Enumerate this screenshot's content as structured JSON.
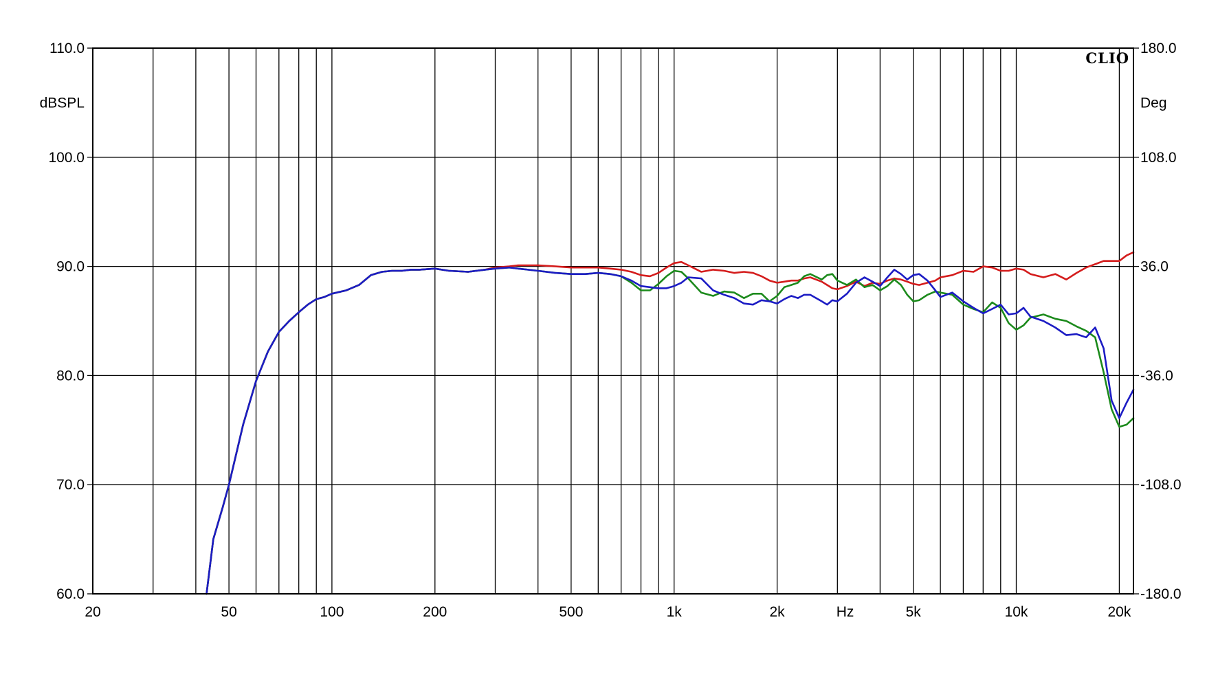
{
  "chart_data": {
    "type": "line",
    "brand": "CLIO",
    "x_scale": "log",
    "xlim": [
      20,
      22000
    ],
    "ylim": [
      60,
      110
    ],
    "y2lim": [
      -180,
      180
    ],
    "ylabel": "dBSPL",
    "y2label": "Deg",
    "xunit": "Hz",
    "grid": true,
    "x_ticks": [
      {
        "value": 20,
        "label": "20"
      },
      {
        "value": 50,
        "label": "50"
      },
      {
        "value": 100,
        "label": "100"
      },
      {
        "value": 200,
        "label": "200"
      },
      {
        "value": 500,
        "label": "500"
      },
      {
        "value": 1000,
        "label": "1k"
      },
      {
        "value": 2000,
        "label": "2k"
      },
      {
        "value": 5000,
        "label": "5k"
      },
      {
        "value": 10000,
        "label": "10k"
      },
      {
        "value": 20000,
        "label": "20k"
      }
    ],
    "x_grid": [
      20,
      30,
      40,
      50,
      60,
      70,
      80,
      90,
      100,
      200,
      300,
      400,
      500,
      600,
      700,
      800,
      900,
      1000,
      2000,
      3000,
      4000,
      5000,
      6000,
      7000,
      8000,
      9000,
      10000,
      20000
    ],
    "y_ticks": [
      {
        "value": 110,
        "label": "110.0"
      },
      {
        "value": 100,
        "label": "100.0"
      },
      {
        "value": 90,
        "label": "90.0"
      },
      {
        "value": 80,
        "label": "80.0"
      },
      {
        "value": 70,
        "label": "70.0"
      },
      {
        "value": 60,
        "label": "60.0"
      }
    ],
    "y2_ticks": [
      {
        "value": 180,
        "label": "180.0"
      },
      {
        "value": 108,
        "label": "108.0"
      },
      {
        "value": 36,
        "label": "36.0"
      },
      {
        "value": -36,
        "label": "-36.0"
      },
      {
        "value": -108,
        "label": "-108.0"
      },
      {
        "value": -180,
        "label": "-180.0"
      }
    ],
    "colors": {
      "red": "#d41c1c",
      "green": "#1c8a1c",
      "blue": "#1c1cc4"
    },
    "series": [
      {
        "color": "red",
        "x": [
          43,
          45,
          48,
          50,
          55,
          60,
          65,
          70,
          75,
          80,
          85,
          90,
          95,
          100,
          110,
          120,
          130,
          140,
          150,
          160,
          170,
          180,
          200,
          220,
          250,
          280,
          300,
          330,
          350,
          400,
          450,
          500,
          550,
          600,
          650,
          700,
          750,
          800,
          850,
          900,
          950,
          1000,
          1050,
          1100,
          1200,
          1300,
          1400,
          1500,
          1600,
          1700,
          1800,
          1900,
          2000,
          2100,
          2200,
          2300,
          2400,
          2500,
          2700,
          2800,
          2900,
          3000,
          3200,
          3400,
          3600,
          3800,
          4000,
          4200,
          4400,
          4600,
          4800,
          5000,
          5200,
          5500,
          5800,
          6000,
          6500,
          7000,
          7500,
          8000,
          8500,
          9000,
          9500,
          10000,
          10500,
          11000,
          12000,
          13000,
          14000,
          15000,
          16000,
          17000,
          18000,
          19000,
          20000,
          21000,
          22000
        ],
        "y": [
          60,
          65,
          68,
          70,
          75.5,
          79.5,
          82.2,
          84,
          85,
          85.8,
          86.5,
          87,
          87.2,
          87.5,
          87.8,
          88.3,
          89.2,
          89.5,
          89.6,
          89.6,
          89.7,
          89.7,
          89.8,
          89.6,
          89.5,
          89.7,
          89.9,
          90,
          90.1,
          90.1,
          90,
          89.9,
          89.9,
          89.9,
          89.8,
          89.7,
          89.5,
          89.2,
          89.1,
          89.4,
          89.9,
          90.3,
          90.4,
          90.1,
          89.5,
          89.7,
          89.6,
          89.4,
          89.5,
          89.4,
          89.1,
          88.7,
          88.5,
          88.6,
          88.7,
          88.7,
          88.9,
          89,
          88.6,
          88.3,
          88,
          87.9,
          88.2,
          88.6,
          88.2,
          88.5,
          88.4,
          88.7,
          88.9,
          88.8,
          88.6,
          88.4,
          88.3,
          88.5,
          88.7,
          89,
          89.2,
          89.6,
          89.5,
          90,
          89.9,
          89.6,
          89.6,
          89.8,
          89.7,
          89.3,
          89,
          89.3,
          88.8,
          89.4,
          89.9,
          90.2,
          90.5,
          90.5,
          90.5,
          91,
          91.3
        ]
      },
      {
        "color": "green",
        "x": [
          43,
          45,
          48,
          50,
          55,
          60,
          65,
          70,
          75,
          80,
          85,
          90,
          95,
          100,
          110,
          120,
          130,
          140,
          150,
          160,
          170,
          180,
          200,
          220,
          250,
          280,
          300,
          330,
          350,
          400,
          450,
          500,
          550,
          600,
          650,
          700,
          750,
          800,
          850,
          900,
          950,
          1000,
          1050,
          1100,
          1200,
          1300,
          1400,
          1500,
          1600,
          1700,
          1800,
          1900,
          2000,
          2100,
          2200,
          2300,
          2400,
          2500,
          2700,
          2800,
          2900,
          3000,
          3200,
          3400,
          3600,
          3800,
          4000,
          4200,
          4400,
          4600,
          4800,
          5000,
          5200,
          5500,
          5800,
          6000,
          6500,
          7000,
          7500,
          8000,
          8500,
          9000,
          9500,
          10000,
          10500,
          11000,
          12000,
          13000,
          14000,
          15000,
          16000,
          17000,
          18000,
          19000,
          20000,
          21000,
          22000
        ],
        "y": [
          60,
          65,
          68,
          70,
          75.5,
          79.5,
          82.2,
          84,
          85,
          85.8,
          86.5,
          87,
          87.2,
          87.5,
          87.8,
          88.3,
          89.2,
          89.5,
          89.6,
          89.6,
          89.7,
          89.7,
          89.8,
          89.6,
          89.5,
          89.7,
          89.8,
          89.9,
          89.8,
          89.6,
          89.4,
          89.3,
          89.3,
          89.4,
          89.3,
          89.1,
          88.5,
          87.8,
          87.8,
          88.4,
          89.1,
          89.6,
          89.5,
          88.9,
          87.6,
          87.3,
          87.7,
          87.6,
          87.1,
          87.5,
          87.5,
          86.8,
          87.3,
          88.1,
          88.3,
          88.5,
          89.1,
          89.3,
          88.8,
          89.2,
          89.3,
          88.7,
          88.3,
          88.8,
          88.1,
          88.3,
          87.8,
          88.2,
          88.8,
          88.3,
          87.4,
          86.8,
          86.9,
          87.4,
          87.7,
          87.6,
          87.4,
          86.5,
          86.1,
          85.8,
          86.7,
          86.2,
          84.8,
          84.2,
          84.6,
          85.3,
          85.6,
          85.2,
          85,
          84.5,
          84.1,
          83.5,
          80.3,
          76.9,
          75.3,
          75.5,
          76.1
        ]
      },
      {
        "color": "blue",
        "x": [
          43,
          45,
          48,
          50,
          55,
          60,
          65,
          70,
          75,
          80,
          85,
          90,
          95,
          100,
          110,
          120,
          130,
          140,
          150,
          160,
          170,
          180,
          200,
          220,
          250,
          280,
          300,
          330,
          350,
          400,
          450,
          500,
          550,
          600,
          650,
          700,
          750,
          800,
          850,
          900,
          950,
          1000,
          1050,
          1100,
          1200,
          1300,
          1400,
          1500,
          1600,
          1700,
          1800,
          1900,
          2000,
          2100,
          2200,
          2300,
          2400,
          2500,
          2700,
          2800,
          2900,
          3000,
          3200,
          3400,
          3600,
          3800,
          4000,
          4200,
          4400,
          4600,
          4800,
          5000,
          5200,
          5500,
          5800,
          6000,
          6500,
          7000,
          7500,
          8000,
          8500,
          9000,
          9500,
          10000,
          10500,
          11000,
          12000,
          13000,
          14000,
          15000,
          16000,
          17000,
          18000,
          19000,
          20000,
          21000,
          22000
        ],
        "y": [
          60,
          65,
          68,
          70,
          75.5,
          79.5,
          82.2,
          84,
          85,
          85.8,
          86.5,
          87,
          87.2,
          87.5,
          87.8,
          88.3,
          89.2,
          89.5,
          89.6,
          89.6,
          89.7,
          89.7,
          89.8,
          89.6,
          89.5,
          89.7,
          89.8,
          89.9,
          89.8,
          89.6,
          89.4,
          89.3,
          89.3,
          89.4,
          89.3,
          89.1,
          88.7,
          88.2,
          88.1,
          88,
          88,
          88.2,
          88.5,
          89,
          88.9,
          87.8,
          87.4,
          87.1,
          86.6,
          86.5,
          86.9,
          86.8,
          86.6,
          87,
          87.3,
          87.1,
          87.4,
          87.4,
          86.8,
          86.5,
          86.9,
          86.8,
          87.5,
          88.5,
          89,
          88.6,
          88.2,
          89,
          89.7,
          89.3,
          88.8,
          89.2,
          89.3,
          88.7,
          87.8,
          87.2,
          87.6,
          86.8,
          86.2,
          85.7,
          86.1,
          86.5,
          85.6,
          85.7,
          86.2,
          85.4,
          85,
          84.4,
          83.7,
          83.8,
          83.5,
          84.4,
          82.5,
          77.7,
          76.1,
          77.5,
          78.7
        ]
      }
    ]
  }
}
